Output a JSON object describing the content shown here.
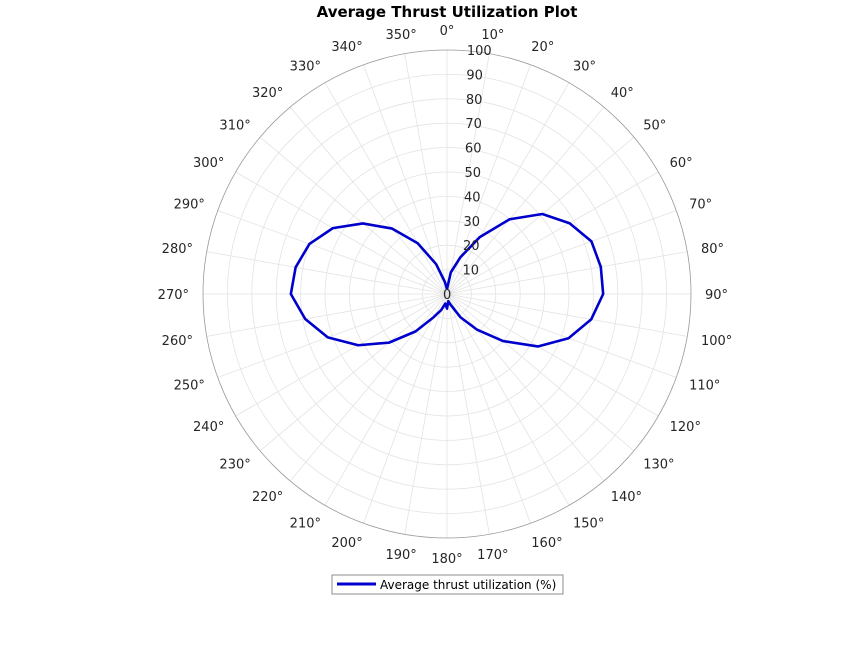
{
  "chart_data": {
    "type": "polar-line",
    "title": "Average Thrust Utilization Plot",
    "theta_direction": "clockwise",
    "theta_zero": "top",
    "theta_ticks": [
      0,
      10,
      20,
      30,
      40,
      50,
      60,
      70,
      80,
      90,
      100,
      110,
      120,
      130,
      140,
      150,
      160,
      170,
      180,
      190,
      200,
      210,
      220,
      230,
      240,
      250,
      260,
      270,
      280,
      290,
      300,
      310,
      320,
      330,
      340,
      350
    ],
    "theta_tick_labels": [
      "0°",
      "10°",
      "20°",
      "30°",
      "40°",
      "50°",
      "60°",
      "70°",
      "80°",
      "90°",
      "100°",
      "110°",
      "120°",
      "130°",
      "140°",
      "150°",
      "160°",
      "170°",
      "180°",
      "190°",
      "200°",
      "210°",
      "220°",
      "230°",
      "240°",
      "250°",
      "260°",
      "270°",
      "280°",
      "290°",
      "300°",
      "310°",
      "320°",
      "330°",
      "340°",
      "350°"
    ],
    "r_ticks": [
      0,
      10,
      20,
      30,
      40,
      50,
      60,
      70,
      80,
      90,
      100
    ],
    "r_tick_labels": [
      "0",
      "10",
      "20",
      "30",
      "40",
      "50",
      "60",
      "70",
      "80",
      "90",
      "100"
    ],
    "rlim": [
      0,
      100
    ],
    "grid": true,
    "legend_position": "bottom",
    "series": [
      {
        "name": "Average thrust utilization (%)",
        "color": "#0000CD",
        "theta": [
          0,
          10,
          20,
          30,
          40,
          50,
          60,
          70,
          80,
          90,
          100,
          110,
          120,
          130,
          140,
          150,
          160,
          170,
          180,
          190,
          200,
          210,
          220,
          230,
          240,
          250,
          260,
          270,
          280,
          290,
          300,
          310,
          320,
          330,
          340,
          350,
          360
        ],
        "r": [
          2,
          9,
          16,
          27,
          40,
          51,
          58,
          63,
          64,
          64,
          60,
          53,
          43,
          30,
          19,
          11,
          5,
          3,
          6,
          4,
          7,
          11,
          20,
          31,
          42,
          52,
          59,
          64,
          63,
          60,
          54,
          45,
          35,
          24,
          13,
          5,
          2
        ]
      }
    ]
  }
}
